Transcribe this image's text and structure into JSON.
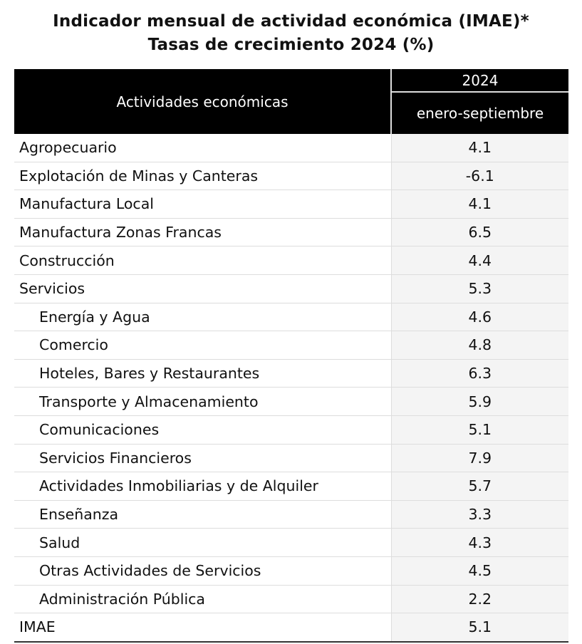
{
  "title": {
    "line1": "Indicador mensual de actividad económica (IMAE)*",
    "line2": "Tasas de crecimiento 2024 (%)"
  },
  "header": {
    "label": "Actividades económicas",
    "year": "2024",
    "period": "enero-septiembre"
  },
  "rows": [
    {
      "name": "Agropecuario",
      "value": "4.1",
      "sub": false
    },
    {
      "name": "Explotación de Minas y Canteras",
      "value": "-6.1",
      "sub": false
    },
    {
      "name": "Manufactura Local",
      "value": "4.1",
      "sub": false
    },
    {
      "name": "Manufactura Zonas Francas",
      "value": "6.5",
      "sub": false
    },
    {
      "name": "Construcción",
      "value": "4.4",
      "sub": false
    },
    {
      "name": "Servicios",
      "value": "5.3",
      "sub": false
    },
    {
      "name": "Energía y Agua",
      "value": "4.6",
      "sub": true
    },
    {
      "name": "Comercio",
      "value": "4.8",
      "sub": true
    },
    {
      "name": "Hoteles, Bares y Restaurantes",
      "value": "6.3",
      "sub": true
    },
    {
      "name": "Transporte y Almacenamiento",
      "value": "5.9",
      "sub": true
    },
    {
      "name": "Comunicaciones",
      "value": "5.1",
      "sub": true
    },
    {
      "name": "Servicios Financieros",
      "value": "7.9",
      "sub": true
    },
    {
      "name": "Actividades Inmobiliarias y de Alquiler",
      "value": "5.7",
      "sub": true
    },
    {
      "name": "Enseñanza",
      "value": "3.3",
      "sub": true
    },
    {
      "name": "Salud",
      "value": "4.3",
      "sub": true
    },
    {
      "name": "Otras Actividades de Servicios",
      "value": "4.5",
      "sub": true
    },
    {
      "name": "Administración Pública",
      "value": "2.2",
      "sub": true
    },
    {
      "name": "IMAE",
      "value": "5.1",
      "sub": false
    }
  ]
}
